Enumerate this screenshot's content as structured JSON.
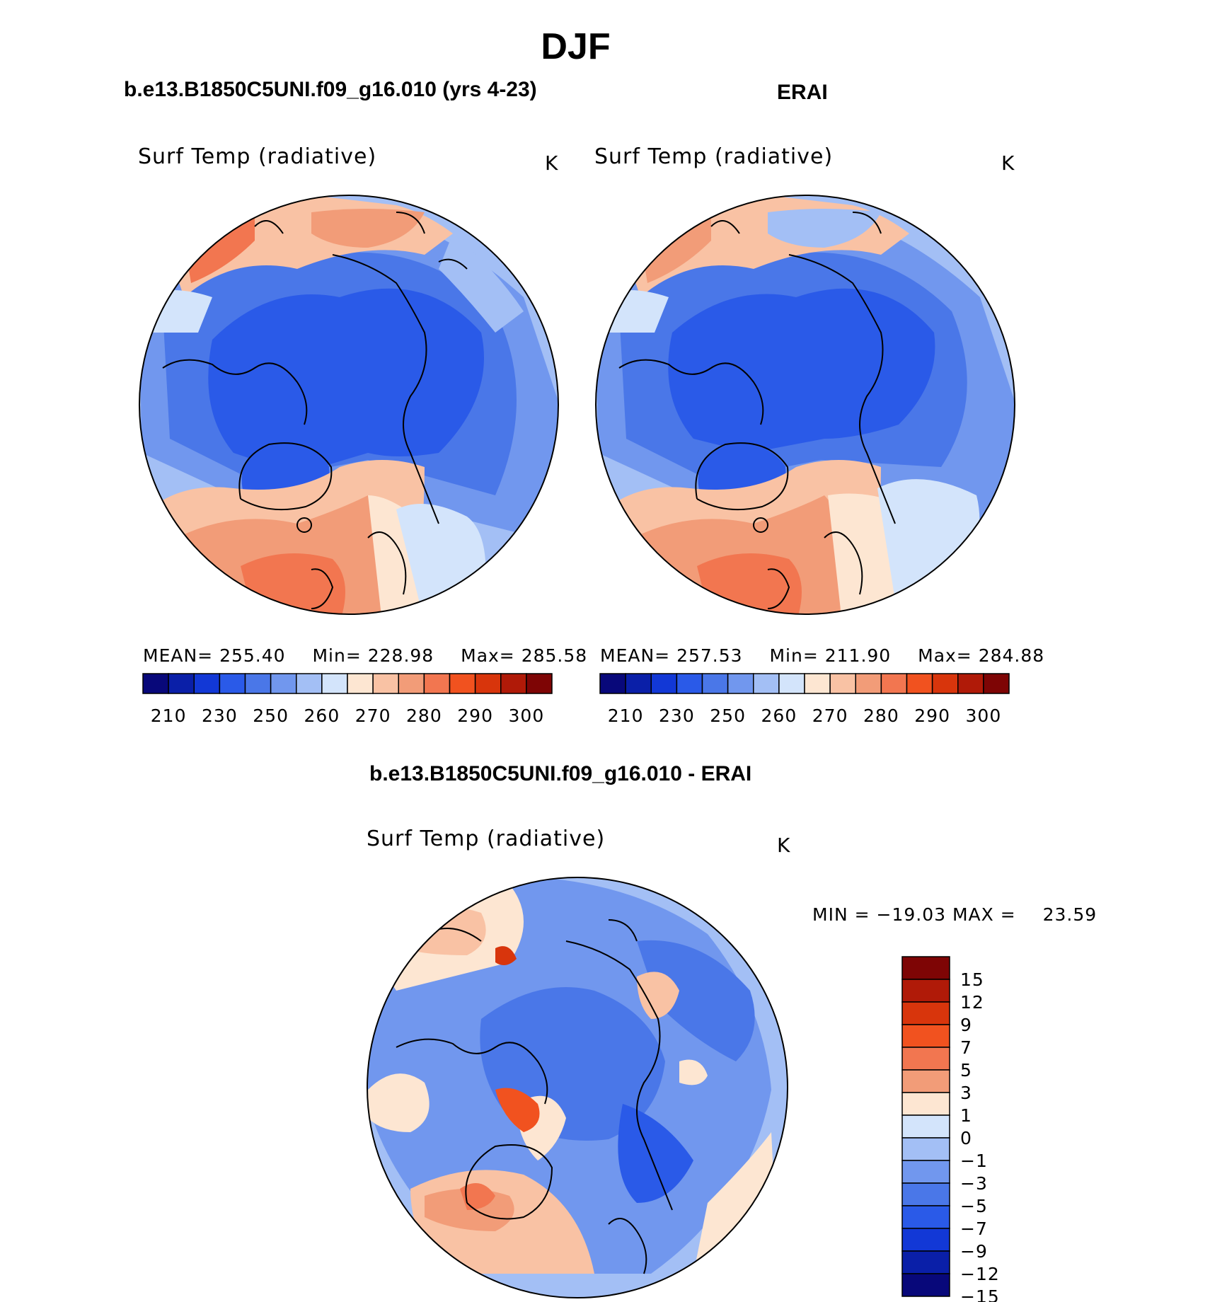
{
  "page_title": "DJF",
  "panel_left": {
    "case_title": "b.e13.B1850C5UNI.f09_g16.010 (yrs 4-23)",
    "variable": "Surf Temp (radiative)",
    "units": "K",
    "stats": {
      "mean_label": "MEAN=",
      "mean": "255.40",
      "min_label": "Min=",
      "min": "228.98",
      "max_label": "Max=",
      "max": "285.58"
    }
  },
  "panel_right": {
    "case_title": "ERAI",
    "variable": "Surf Temp (radiative)",
    "units": "K",
    "stats": {
      "mean_label": "MEAN=",
      "mean": "257.53",
      "min_label": "Min=",
      "min": "211.90",
      "max_label": "Max=",
      "max": "284.88"
    }
  },
  "abs_colorbar": {
    "colors": [
      "#08087a",
      "#0a1fa8",
      "#1238d6",
      "#2a5ae8",
      "#4a77e8",
      "#7197ee",
      "#a3bff5",
      "#d3e4fb",
      "#fde6d2",
      "#f9c2a4",
      "#f29c78",
      "#f27650",
      "#f1521f",
      "#d8350c",
      "#b01a08",
      "#7e0505"
    ],
    "tick_labels": [
      "210",
      "230",
      "250",
      "260",
      "270",
      "280",
      "290",
      "300"
    ]
  },
  "panel_diff": {
    "case_title": "b.e13.B1850C5UNI.f09_g16.010 - ERAI",
    "variable": "Surf Temp (radiative)",
    "units": "K",
    "range": {
      "min_label": "MIN =",
      "min": "−19.03",
      "max_label": "MAX =",
      "max": "23.59"
    }
  },
  "diff_colorbar": {
    "colors": [
      "#7e0505",
      "#b01a08",
      "#d8350c",
      "#f1521f",
      "#f27650",
      "#f29c78",
      "#fde6d2",
      "#d3e4fb",
      "#a3bff5",
      "#7197ee",
      "#4a77e8",
      "#2a5ae8",
      "#1238d6",
      "#0a1fa8",
      "#08087a"
    ],
    "tick_labels": [
      "15",
      "12",
      "9",
      "7",
      "5",
      "3",
      "1",
      "0",
      "−1",
      "−3",
      "−5",
      "−7",
      "−9",
      "−12",
      "−15"
    ]
  },
  "map_colors": {
    "deep": "#2a5ae8",
    "mid": "#4a77e8",
    "light": "#7197ee",
    "pale": "#a3bff5",
    "ice": "#d3e4fb",
    "cream": "#fde6d2",
    "peach": "#f9c2a4",
    "salmon": "#f29c78",
    "orange": "#f27650",
    "red": "#d8350c",
    "coast": "#000000"
  }
}
